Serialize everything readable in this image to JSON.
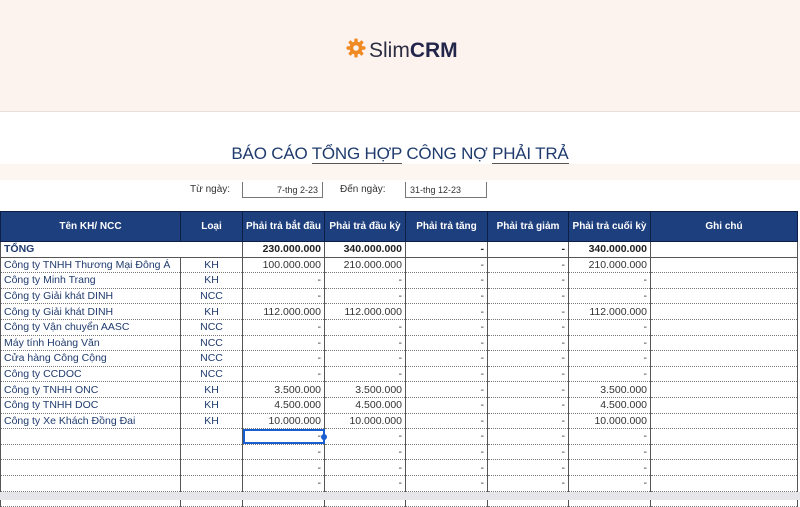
{
  "brand": {
    "name_light": "Slim",
    "name_bold": "CRM",
    "icon": "gear-icon",
    "color": "#f08a24"
  },
  "report": {
    "title_parts": [
      "BÁO CÁO ",
      "TỔNG HỢP",
      " CÔNG NỢ ",
      "PHẢI TRẢ"
    ]
  },
  "dates": {
    "from_label": "Từ ngày:",
    "from_value": "7-thg 2-23",
    "to_label": "Đến ngày:",
    "to_value": "31-thg 12-23"
  },
  "columns": [
    "Tên KH/ NCC",
    "Loại",
    "Phải trả bắt đầu",
    "Phải trả đầu kỳ",
    "Phải trả tăng",
    "Phải trả giảm",
    "Phải trả cuối kỳ",
    "Ghi chú"
  ],
  "total": {
    "label": "TỔNG",
    "values": [
      "230.000.000",
      "340.000.000",
      "-",
      "-",
      "340.000.000",
      ""
    ]
  },
  "rows": [
    [
      "Công ty TNHH Thương Mại Đông Á",
      "KH",
      "100.000.000",
      "210.000.000",
      "-",
      "-",
      "210.000.000",
      ""
    ],
    [
      "Công ty Minh Trang",
      "KH",
      "-",
      "-",
      "-",
      "-",
      "-",
      ""
    ],
    [
      "Công ty Giải khát DINH",
      "NCC",
      "-",
      "-",
      "-",
      "-",
      "-",
      ""
    ],
    [
      "Công ty Giải khát DINH",
      "KH",
      "112.000.000",
      "112.000.000",
      "-",
      "-",
      "112.000.000",
      ""
    ],
    [
      "Công ty Vận chuyển AASC",
      "NCC",
      "-",
      "-",
      "-",
      "-",
      "-",
      ""
    ],
    [
      "Máy tính Hoàng Văn",
      "NCC",
      "-",
      "-",
      "-",
      "-",
      "-",
      ""
    ],
    [
      "Cửa hàng Công Cộng",
      "NCC",
      "-",
      "-",
      "-",
      "-",
      "-",
      ""
    ],
    [
      "Công ty CCDOC",
      "NCC",
      "-",
      "-",
      "-",
      "-",
      "-",
      ""
    ],
    [
      "Công ty TNHH ONC",
      "KH",
      "3.500.000",
      "3.500.000",
      "-",
      "-",
      "3.500.000",
      ""
    ],
    [
      "Công ty TNHH DOC",
      "KH",
      "4.500.000",
      "4.500.000",
      "-",
      "-",
      "4.500.000",
      ""
    ],
    [
      "Công ty Xe Khách Đồng Đai",
      "KH",
      "10.000.000",
      "10.000.000",
      "-",
      "-",
      "10.000.000",
      ""
    ],
    [
      "",
      "",
      "-",
      "-",
      "-",
      "-",
      "-",
      ""
    ],
    [
      "",
      "",
      "-",
      "-",
      "-",
      "-",
      "-",
      ""
    ],
    [
      "",
      "",
      "-",
      "-",
      "-",
      "-",
      "-",
      ""
    ],
    [
      "",
      "",
      "-",
      "-",
      "-",
      "-",
      "-",
      ""
    ],
    [
      "",
      "",
      "",
      "",
      "",
      "",
      "",
      ""
    ]
  ]
}
